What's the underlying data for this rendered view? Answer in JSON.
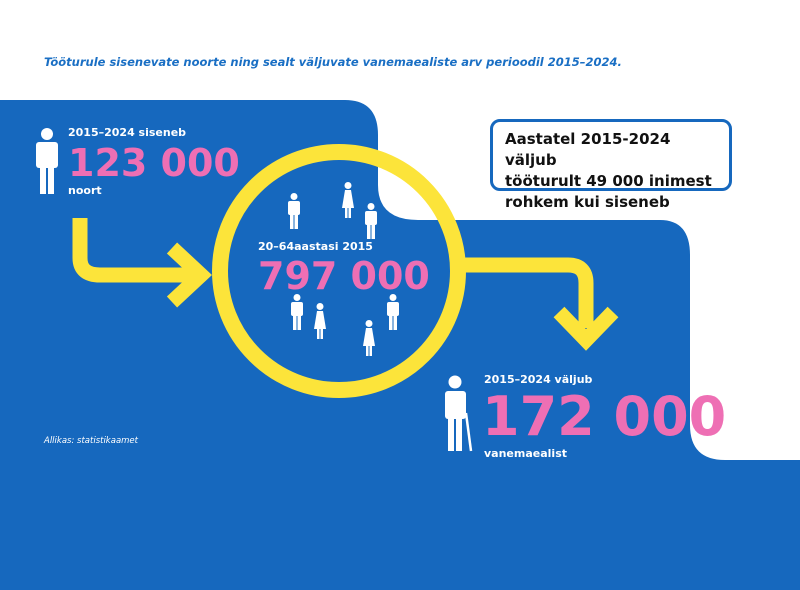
{
  "title": "Tööturule sisenevate noorte ning sealt väljuvate vanemaealiste arv perioodil 2015–2024.",
  "entering": {
    "label": "2015–2024 siseneb",
    "value": "123 000",
    "unit": "noort"
  },
  "population": {
    "label": "20–64aastasi 2015",
    "value": "797 000"
  },
  "leaving": {
    "label": "2015–2024 väljub",
    "value": "172 000",
    "unit": "vanemaealist"
  },
  "callout": {
    "lines": [
      "Aastatel 2015-2024 väljub",
      "tööturult 49 000 inimest",
      "rohkem kui siseneb"
    ]
  },
  "source": "Allikas: statistikaamet",
  "colors": {
    "blue": "#1668be",
    "yellow": "#fce43a",
    "pink": "#ee6fb4",
    "title": "#1a6fc4"
  },
  "icons": [
    "person-icon",
    "woman-icon",
    "elderly-person-with-cane-icon",
    "arrow-right-icon",
    "arrow-down-icon"
  ]
}
